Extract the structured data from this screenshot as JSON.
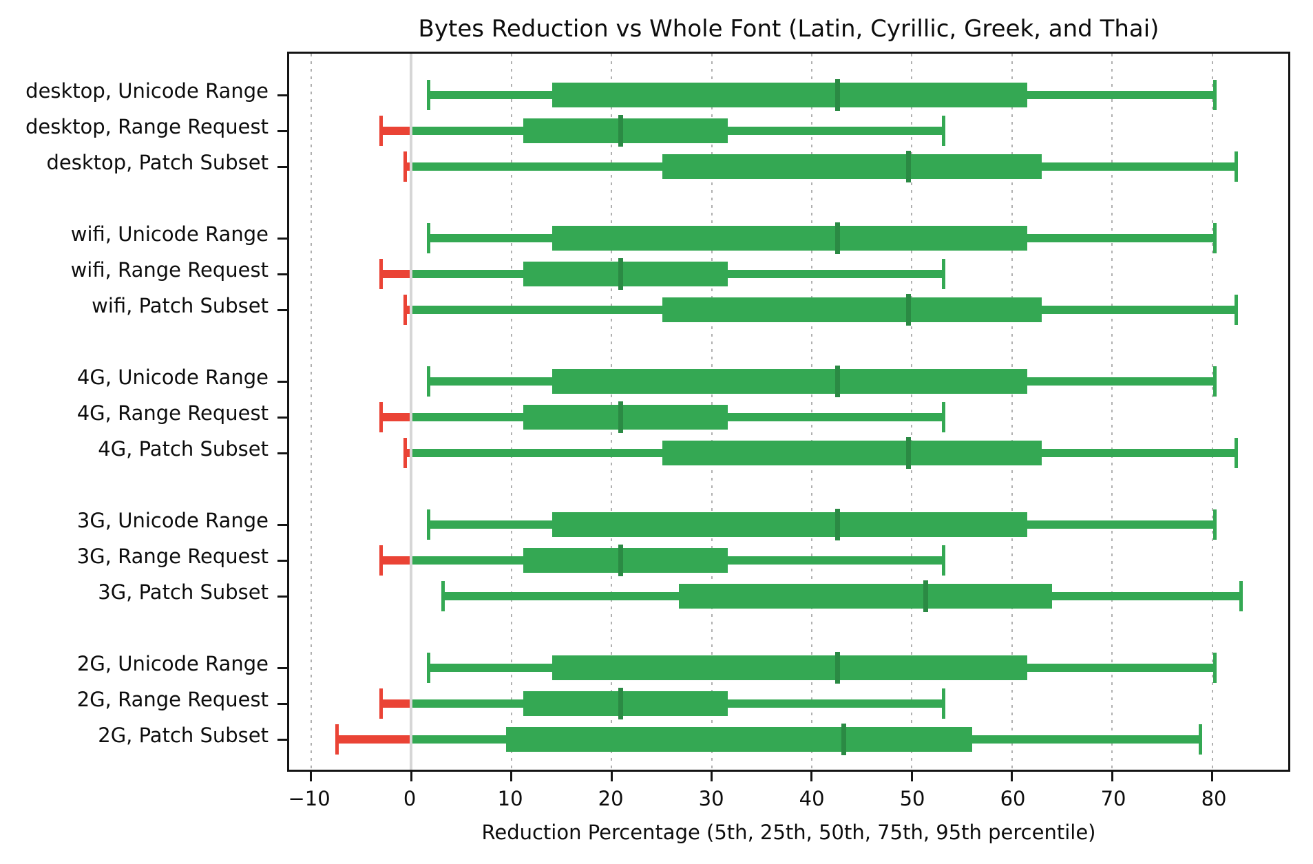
{
  "title": "Bytes Reduction vs Whole Font (Latin, Cyrillic, Greek, and Thai)",
  "xlabel": "Reduction Percentage (5th, 25th, 50th, 75th, 95th percentile)",
  "chart_data": {
    "type": "boxplot",
    "orientation": "horizontal",
    "title": "Bytes Reduction vs Whole Font (Latin, Cyrillic, Greek, and Thai)",
    "xlabel": "Reduction Percentage (5th, 25th, 50th, 75th, 95th percentile)",
    "percentiles": [
      5,
      25,
      50,
      75,
      95
    ],
    "xlim": [
      -12.2,
      87.6
    ],
    "x_tick_values": [
      -10,
      0,
      10,
      20,
      30,
      40,
      50,
      60,
      70,
      80
    ],
    "x_tick_labels": [
      "−10",
      "0",
      "10",
      "20",
      "30",
      "40",
      "50",
      "60",
      "70",
      "80"
    ],
    "grid": {
      "show": true,
      "style": "dotted",
      "color": "#b0b0b0"
    },
    "zero_line": {
      "show": true,
      "color": "#d6d6d6"
    },
    "legend": "none",
    "colors": {
      "positive": "#34a853",
      "negative": "#ea4335",
      "median": "#2b8a44"
    },
    "groups": [
      "desktop",
      "wifi",
      "4G",
      "3G",
      "2G"
    ],
    "rows": [
      {
        "label": "desktop, Unicode Range",
        "values": [
          1.7,
          14.1,
          42.6,
          61.5,
          80.3
        ]
      },
      {
        "label": "desktop, Range Request",
        "values": [
          -3.0,
          11.2,
          20.9,
          31.6,
          53.2
        ]
      },
      {
        "label": "desktop, Patch Subset",
        "values": [
          -0.6,
          25.1,
          49.7,
          63.0,
          82.4
        ]
      },
      {
        "label": "wifi, Unicode Range",
        "values": [
          1.7,
          14.1,
          42.6,
          61.5,
          80.3
        ]
      },
      {
        "label": "wifi, Range Request",
        "values": [
          -3.0,
          11.2,
          20.9,
          31.6,
          53.2
        ]
      },
      {
        "label": "wifi, Patch Subset",
        "values": [
          -0.6,
          25.1,
          49.7,
          63.0,
          82.4
        ]
      },
      {
        "label": "4G, Unicode Range",
        "values": [
          1.7,
          14.1,
          42.6,
          61.5,
          80.3
        ]
      },
      {
        "label": "4G, Range Request",
        "values": [
          -3.0,
          11.2,
          20.9,
          31.6,
          53.2
        ]
      },
      {
        "label": "4G, Patch Subset",
        "values": [
          -0.6,
          25.1,
          49.7,
          63.0,
          82.4
        ]
      },
      {
        "label": "3G, Unicode Range",
        "values": [
          1.7,
          14.1,
          42.6,
          61.5,
          80.3
        ]
      },
      {
        "label": "3G, Range Request",
        "values": [
          -3.0,
          11.2,
          20.9,
          31.6,
          53.2
        ]
      },
      {
        "label": "3G, Patch Subset",
        "values": [
          3.2,
          26.7,
          51.4,
          64.0,
          82.9
        ]
      },
      {
        "label": "2G, Unicode Range",
        "values": [
          1.7,
          14.1,
          42.6,
          61.5,
          80.3
        ]
      },
      {
        "label": "2G, Range Request",
        "values": [
          -3.0,
          11.2,
          20.9,
          31.6,
          53.2
        ]
      },
      {
        "label": "2G, Patch Subset",
        "values": [
          -7.4,
          9.5,
          43.2,
          56.0,
          78.8
        ]
      }
    ]
  }
}
